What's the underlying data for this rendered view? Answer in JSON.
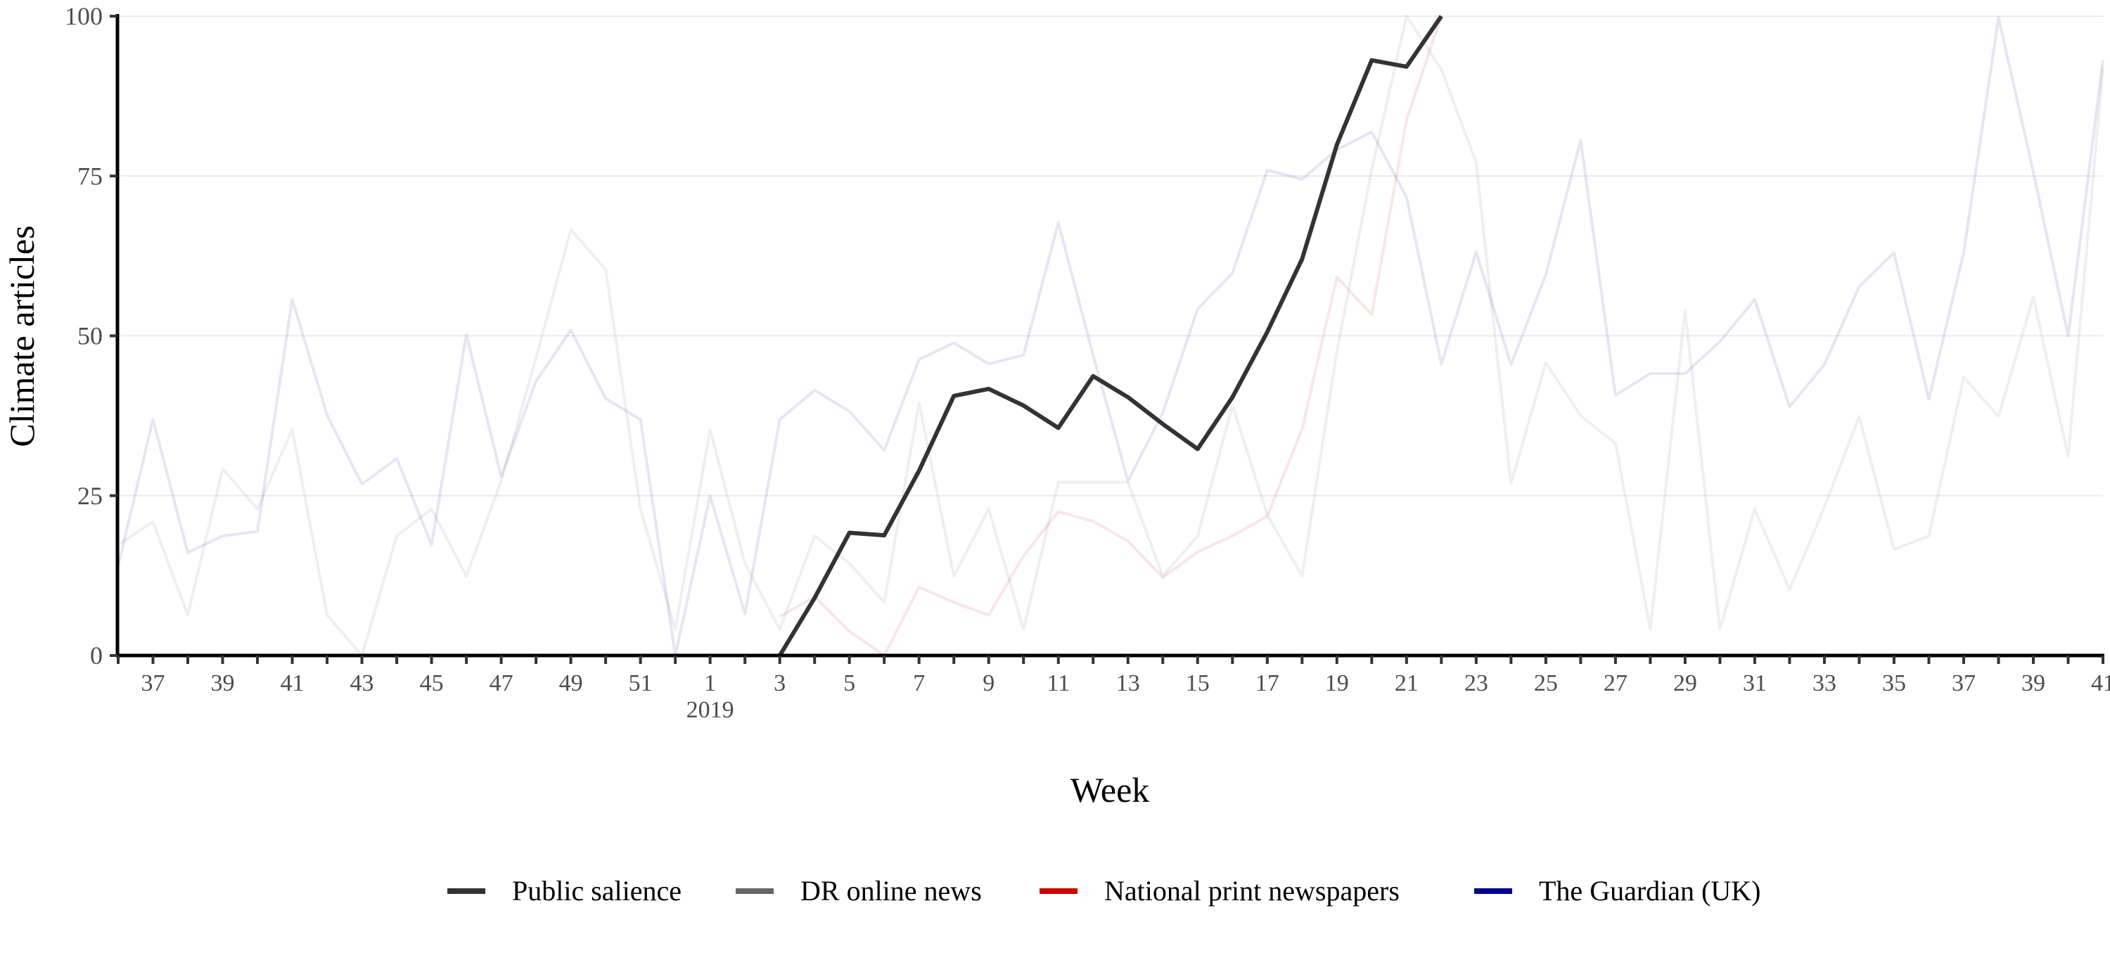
{
  "chart_data": {
    "type": "line",
    "title": "",
    "xlabel": "Week",
    "ylabel": "Climate articles",
    "ylim": [
      0,
      100
    ],
    "yticks": [
      "0",
      "25",
      "50",
      "75",
      "100"
    ],
    "grid": "horizontal major",
    "legend_position": "bottom",
    "year_marker": {
      "label": "2019",
      "at_week": "1"
    },
    "x": [
      "36",
      "37",
      "38",
      "39",
      "40",
      "41",
      "42",
      "43",
      "44",
      "45",
      "46",
      "47",
      "48",
      "49",
      "50",
      "51",
      "52",
      "1",
      "2",
      "3",
      "4",
      "5",
      "6",
      "7",
      "8",
      "9",
      "10",
      "11",
      "12",
      "13",
      "14",
      "15",
      "16",
      "17",
      "18",
      "19",
      "20",
      "21",
      "22",
      "23",
      "24",
      "25",
      "26",
      "27",
      "28",
      "29",
      "30",
      "31",
      "32",
      "33",
      "34",
      "35",
      "36",
      "37",
      "38",
      "39",
      "40",
      "41"
    ],
    "xtick_labels_every": 2,
    "series": [
      {
        "name": "DR online news",
        "color": "#666666",
        "faded": true,
        "values": [
          17.3,
          20.9,
          6.3,
          29.2,
          22.9,
          35.4,
          6.3,
          0,
          18.7,
          22.9,
          12.4,
          27.3,
          46.5,
          66.6,
          60.4,
          22.9,
          4.1,
          35.3,
          14.4,
          4.1,
          18.7,
          14.4,
          8.3,
          39.5,
          12.4,
          22.9,
          4.1,
          27.1,
          27.1,
          27.1,
          12.4,
          18.7,
          39.1,
          22.0,
          12.4,
          47.6,
          76.0,
          100,
          91.7,
          77.1,
          26.9,
          45.8,
          37.5,
          33.2,
          4.1,
          54.0,
          4.1,
          22.9,
          10.3,
          23.2,
          37.4,
          16.6,
          18.7,
          43.5,
          37.4,
          56.1,
          31.1,
          91.9
        ]
      },
      {
        "name": "The Guardian (UK)",
        "color": "#00008B",
        "faded": true,
        "values": [
          14.0,
          36.9,
          16.1,
          18.7,
          19.4,
          55.7,
          37.6,
          26.8,
          30.8,
          17.3,
          50.2,
          28.0,
          42.9,
          50.9,
          40.2,
          36.9,
          0,
          25.0,
          6.5,
          36.9,
          41.5,
          38.2,
          32.1,
          46.3,
          48.9,
          45.6,
          47.0,
          67.7,
          47.0,
          27.3,
          38.0,
          54.2,
          59.8,
          75.9,
          74.5,
          79.1,
          81.9,
          71.7,
          45.6,
          63.1,
          45.5,
          59.6,
          80.6,
          40.7,
          44.1,
          44.1,
          49.1,
          55.7,
          38.9,
          45.5,
          57.7,
          63.0,
          40.1,
          63.0,
          99.8,
          75.6,
          50.0,
          93.1
        ]
      },
      {
        "name": "National print newspapers",
        "color": "#CC0000",
        "faded": true,
        "values": [
          null,
          null,
          null,
          null,
          null,
          null,
          null,
          null,
          null,
          null,
          null,
          null,
          null,
          null,
          null,
          null,
          null,
          null,
          null,
          6.1,
          9.2,
          3.8,
          0,
          10.7,
          8.3,
          6.3,
          15.6,
          22.5,
          21.0,
          17.9,
          12.2,
          16.2,
          18.7,
          21.8,
          35.4,
          59.2,
          53.3,
          83.8,
          100,
          null,
          null,
          null,
          null,
          null,
          null,
          null,
          null,
          null,
          null,
          null,
          null,
          null,
          null,
          null,
          null,
          null,
          null,
          null
        ]
      },
      {
        "name": "Public salience",
        "color": "#333333",
        "faded": false,
        "values": [
          null,
          null,
          null,
          null,
          null,
          null,
          null,
          null,
          null,
          null,
          null,
          null,
          null,
          null,
          null,
          null,
          null,
          null,
          null,
          0,
          9.0,
          19.2,
          18.8,
          28.9,
          40.6,
          41.7,
          39.1,
          35.6,
          43.7,
          40.4,
          36.2,
          32.3,
          40.4,
          50.6,
          62.0,
          79.9,
          93.1,
          92.1,
          100,
          null,
          null,
          null,
          null,
          null,
          null,
          null,
          null,
          null,
          null,
          null,
          null,
          null,
          null,
          null,
          null,
          null,
          null,
          null
        ]
      }
    ],
    "legend": [
      {
        "label": "Public salience",
        "color": "#333333"
      },
      {
        "label": "DR online news",
        "color": "#666666"
      },
      {
        "label": "National print newspapers",
        "color": "#CC0000"
      },
      {
        "label": "The Guardian (UK)",
        "color": "#00008B"
      }
    ]
  }
}
